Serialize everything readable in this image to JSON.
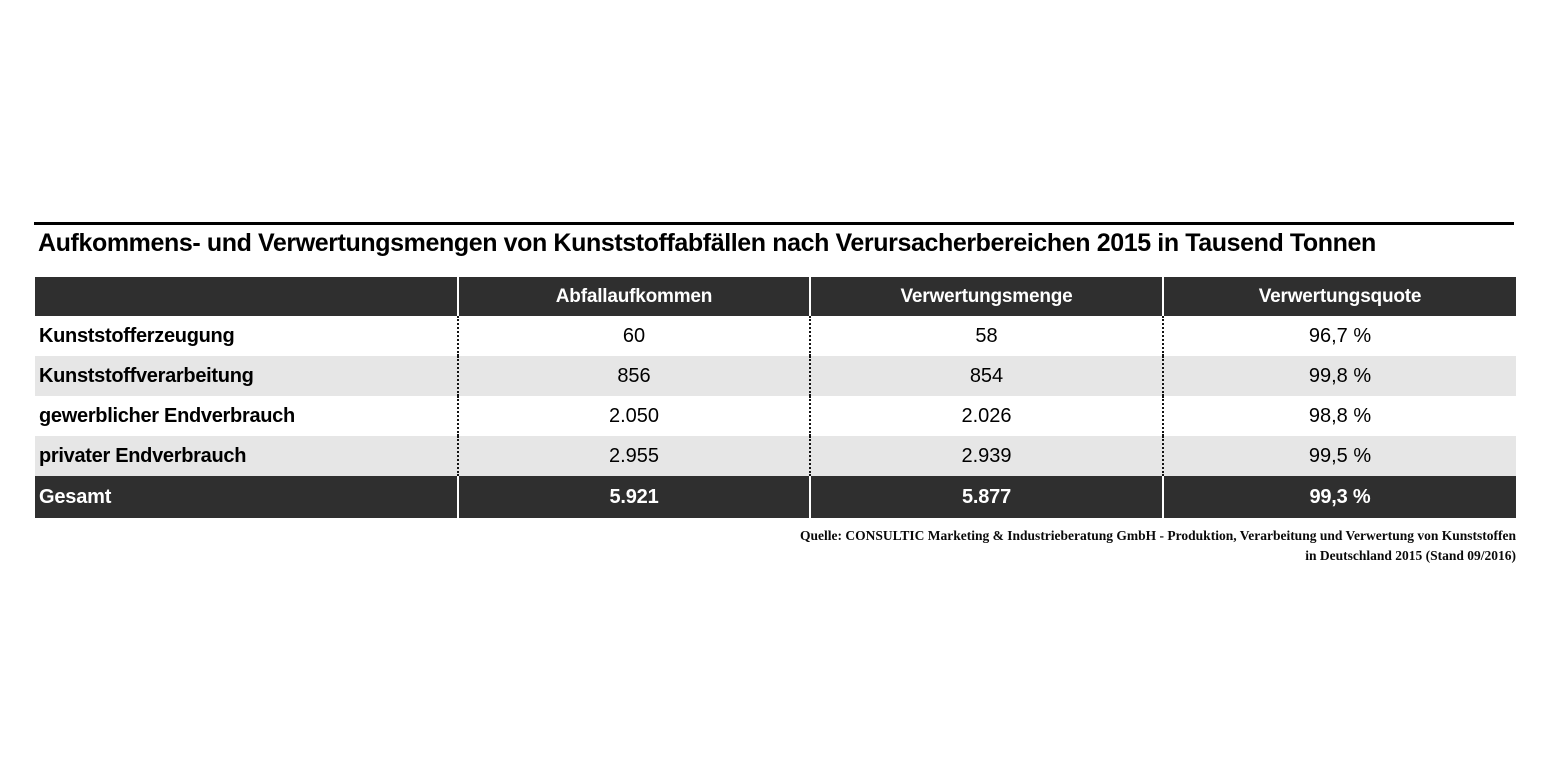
{
  "title": "Aufkommens- und Verwertungsmengen von Kunststoffabfällen nach Verursacherbereichen 2015 in Tausend Tonnen",
  "table": {
    "columns": [
      "",
      "Abfallaufkommen",
      "Verwertungsmenge",
      "Verwertungsquote"
    ],
    "rows": [
      {
        "label": "Kunststofferzeugung",
        "values": [
          "60",
          "58",
          "96,7 %"
        ]
      },
      {
        "label": "Kunststoffverarbeitung",
        "values": [
          "856",
          "854",
          "99,8 %"
        ]
      },
      {
        "label": "gewerblicher Endverbrauch",
        "values": [
          "2.050",
          "2.026",
          "98,8 %"
        ]
      },
      {
        "label": "privater Endverbrauch",
        "values": [
          "2.955",
          "2.939",
          "99,5 %"
        ]
      }
    ],
    "total": {
      "label": "Gesamt",
      "values": [
        "5.921",
        "5.877",
        "99,3 %"
      ]
    }
  },
  "source": {
    "line1": "Quelle: CONSULTIC Marketing & Industrieberatung GmbH - Produktion, Verarbeitung und Verwertung von Kunststoffen",
    "line2": "in Deutschland 2015 (Stand 09/2016)"
  },
  "colors": {
    "header_dark": "#2f2f2f",
    "stripe_gray": "#e6e6e6",
    "text_black": "#000000",
    "text_white": "#ffffff"
  },
  "chart_data": {
    "type": "table",
    "title": "Aufkommens- und Verwertungsmengen von Kunststoffabfällen nach Verursacherbereichen 2015 in Tausend Tonnen",
    "unit": "Tausend Tonnen",
    "columns": [
      "Abfallaufkommen",
      "Verwertungsmenge",
      "Verwertungsquote"
    ],
    "rows": [
      {
        "category": "Kunststofferzeugung",
        "abfallaufkommen": 60,
        "verwertungsmenge": 58,
        "verwertungsquote_pct": 96.7
      },
      {
        "category": "Kunststoffverarbeitung",
        "abfallaufkommen": 856,
        "verwertungsmenge": 854,
        "verwertungsquote_pct": 99.8
      },
      {
        "category": "gewerblicher Endverbrauch",
        "abfallaufkommen": 2050,
        "verwertungsmenge": 2026,
        "verwertungsquote_pct": 98.8
      },
      {
        "category": "privater Endverbrauch",
        "abfallaufkommen": 2955,
        "verwertungsmenge": 2939,
        "verwertungsquote_pct": 99.5
      },
      {
        "category": "Gesamt",
        "abfallaufkommen": 5921,
        "verwertungsmenge": 5877,
        "verwertungsquote_pct": 99.3
      }
    ],
    "source": "Quelle: CONSULTIC Marketing & Industrieberatung GmbH - Produktion, Verarbeitung und Verwertung von Kunststoffen in Deutschland 2015 (Stand 09/2016)"
  }
}
